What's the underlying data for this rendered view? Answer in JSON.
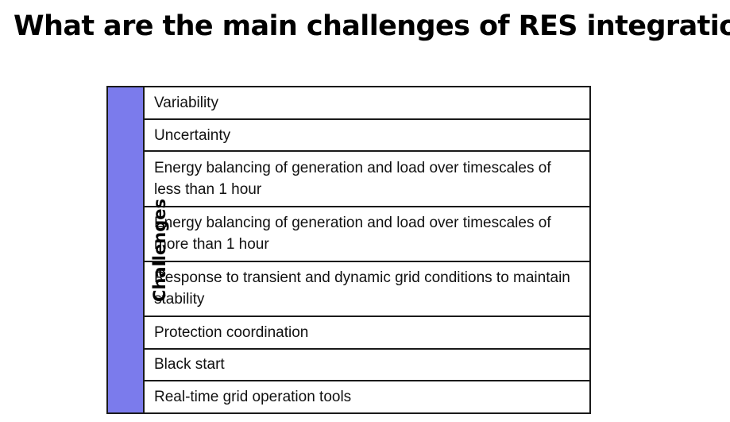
{
  "page": {
    "title": "What are the main challenges of RES integration"
  },
  "table": {
    "header_label": "Challenges",
    "header_color": "#7b7bec",
    "rows": [
      "Variability",
      "Uncertainty",
      "Energy balancing of generation and load over timescales of less than 1 hour",
      "Energy balancing of generation and load over timescales of more than 1 hour",
      "Response to transient and dynamic grid conditions to maintain stability",
      "Protection coordination",
      "Black start",
      "Real-time grid operation tools"
    ]
  }
}
